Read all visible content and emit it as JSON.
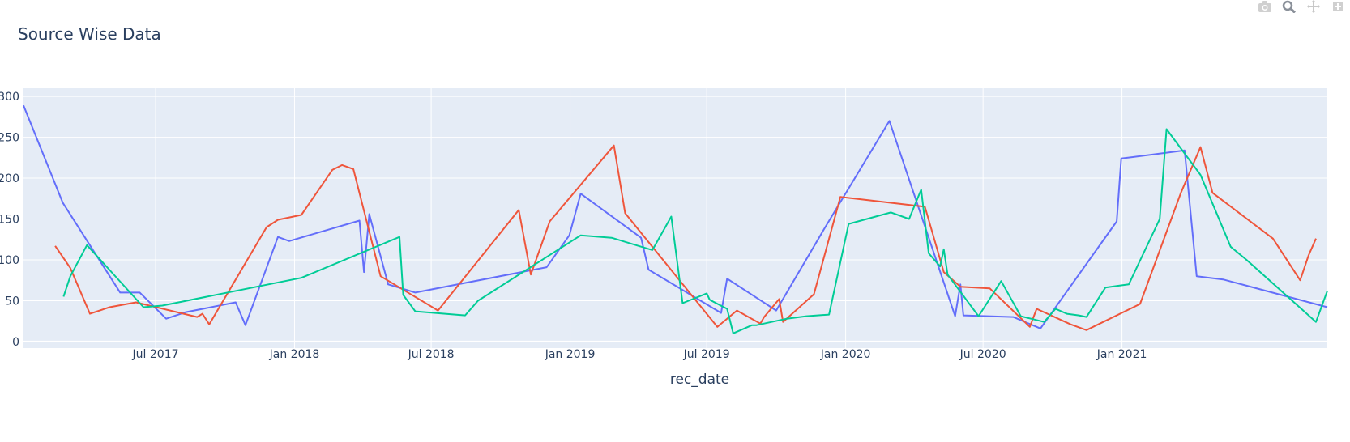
{
  "title": "Source Wise Data",
  "modebar": {
    "icons": [
      "camera-icon",
      "zoom-icon",
      "pan-icon",
      "more-icon"
    ]
  },
  "chart_data": {
    "type": "line",
    "title": "Source Wise Data",
    "xlabel": "rec_date",
    "ylabel": "",
    "x_range": [
      "2017-01-07",
      "2021-09-30"
    ],
    "ylim": [
      -8,
      310
    ],
    "x_ticks": [
      {
        "label": "Jul 2017",
        "date": "2017-07-01"
      },
      {
        "label": "Jan 2018",
        "date": "2018-01-01"
      },
      {
        "label": "Jul 2018",
        "date": "2018-07-01"
      },
      {
        "label": "Jan 2019",
        "date": "2019-01-01"
      },
      {
        "label": "Jul 2019",
        "date": "2019-07-01"
      },
      {
        "label": "Jan 2020",
        "date": "2020-01-01"
      },
      {
        "label": "Jul 2020",
        "date": "2020-07-01"
      },
      {
        "label": "Jan 2021",
        "date": "2021-01-01"
      }
    ],
    "y_ticks": [
      0,
      50,
      100,
      150,
      200,
      250,
      300
    ],
    "y_tick_labels": [
      "0",
      "50",
      "100",
      "150",
      "200",
      "250",
      "300"
    ],
    "grid": true,
    "legend": "none",
    "plot_bgcolor": "#e5ecf6",
    "series": [
      {
        "color": "#636efa",
        "points": [
          [
            "2017-01-07",
            289
          ],
          [
            "2017-02-28",
            170
          ],
          [
            "2017-05-15",
            60
          ],
          [
            "2017-06-10",
            60
          ],
          [
            "2017-07-15",
            28
          ],
          [
            "2017-08-10",
            36
          ],
          [
            "2017-10-15",
            48
          ],
          [
            "2017-10-28",
            20
          ],
          [
            "2017-12-10",
            128
          ],
          [
            "2017-12-25",
            123
          ],
          [
            "2018-03-28",
            148
          ],
          [
            "2018-04-03",
            85
          ],
          [
            "2018-04-10",
            156
          ],
          [
            "2018-05-05",
            70
          ],
          [
            "2018-06-10",
            60
          ],
          [
            "2018-12-01",
            91
          ],
          [
            "2018-12-31",
            130
          ],
          [
            "2019-01-15",
            181
          ],
          [
            "2019-04-05",
            127
          ],
          [
            "2019-04-15",
            88
          ],
          [
            "2019-07-20",
            35
          ],
          [
            "2019-07-28",
            77
          ],
          [
            "2019-10-01",
            38
          ],
          [
            "2019-12-05",
            140
          ],
          [
            "2020-02-28",
            270
          ],
          [
            "2020-05-25",
            31
          ],
          [
            "2020-06-01",
            70
          ],
          [
            "2020-06-05",
            32
          ],
          [
            "2020-08-10",
            30
          ],
          [
            "2020-09-15",
            16
          ],
          [
            "2020-12-25",
            147
          ],
          [
            "2020-12-31",
            224
          ],
          [
            "2021-03-25",
            234
          ],
          [
            "2021-04-10",
            80
          ],
          [
            "2021-05-15",
            76
          ],
          [
            "2021-09-30",
            42
          ]
        ]
      },
      {
        "color": "#ef553b",
        "points": [
          [
            "2017-02-18",
            117
          ],
          [
            "2017-03-10",
            90
          ],
          [
            "2017-04-05",
            34
          ],
          [
            "2017-05-01",
            42
          ],
          [
            "2017-06-05",
            48
          ],
          [
            "2017-08-25",
            30
          ],
          [
            "2017-09-01",
            34
          ],
          [
            "2017-09-10",
            21
          ],
          [
            "2017-11-25",
            140
          ],
          [
            "2017-12-10",
            149
          ],
          [
            "2018-01-10",
            155
          ],
          [
            "2018-02-20",
            210
          ],
          [
            "2018-03-05",
            216
          ],
          [
            "2018-03-20",
            211
          ],
          [
            "2018-04-25",
            80
          ],
          [
            "2018-07-10",
            38
          ],
          [
            "2018-10-25",
            161
          ],
          [
            "2018-11-10",
            82
          ],
          [
            "2018-12-05",
            147
          ],
          [
            "2019-02-28",
            240
          ],
          [
            "2019-03-15",
            157
          ],
          [
            "2019-07-15",
            18
          ],
          [
            "2019-08-10",
            38
          ],
          [
            "2019-09-10",
            22
          ],
          [
            "2019-09-15",
            30
          ],
          [
            "2019-10-05",
            52
          ],
          [
            "2019-10-10",
            24
          ],
          [
            "2019-11-20",
            58
          ],
          [
            "2019-12-25",
            177
          ],
          [
            "2020-04-15",
            165
          ],
          [
            "2020-05-10",
            85
          ],
          [
            "2020-06-01",
            67
          ],
          [
            "2020-07-10",
            65
          ],
          [
            "2020-09-01",
            18
          ],
          [
            "2020-09-10",
            40
          ],
          [
            "2020-10-25",
            21
          ],
          [
            "2020-11-15",
            14
          ],
          [
            "2021-01-25",
            46
          ],
          [
            "2021-03-20",
            182
          ],
          [
            "2021-04-15",
            238
          ],
          [
            "2021-05-01",
            182
          ],
          [
            "2021-07-20",
            126
          ],
          [
            "2021-08-25",
            75
          ],
          [
            "2021-09-05",
            105
          ],
          [
            "2021-09-15",
            126
          ]
        ]
      },
      {
        "color": "#00cc96",
        "points": [
          [
            "2017-03-01",
            55
          ],
          [
            "2017-03-10",
            80
          ],
          [
            "2017-04-01",
            118
          ],
          [
            "2017-06-15",
            42
          ],
          [
            "2017-07-10",
            44
          ],
          [
            "2018-01-10",
            78
          ],
          [
            "2018-05-20",
            128
          ],
          [
            "2018-05-25",
            57
          ],
          [
            "2018-06-10",
            37
          ],
          [
            "2018-08-15",
            32
          ],
          [
            "2018-09-01",
            50
          ],
          [
            "2019-01-15",
            130
          ],
          [
            "2019-02-25",
            127
          ],
          [
            "2019-04-20",
            112
          ],
          [
            "2019-05-15",
            153
          ],
          [
            "2019-05-30",
            47
          ],
          [
            "2019-07-01",
            59
          ],
          [
            "2019-07-05",
            51
          ],
          [
            "2019-07-28",
            40
          ],
          [
            "2019-08-05",
            10
          ],
          [
            "2019-08-30",
            20
          ],
          [
            "2019-09-05",
            20
          ],
          [
            "2019-10-15",
            28
          ],
          [
            "2019-11-10",
            31
          ],
          [
            "2019-12-10",
            33
          ],
          [
            "2020-01-05",
            144
          ],
          [
            "2020-03-01",
            158
          ],
          [
            "2020-03-25",
            150
          ],
          [
            "2020-04-10",
            186
          ],
          [
            "2020-04-20",
            108
          ],
          [
            "2020-05-05",
            92
          ],
          [
            "2020-05-10",
            113
          ],
          [
            "2020-05-15",
            82
          ],
          [
            "2020-06-25",
            31
          ],
          [
            "2020-07-25",
            74
          ],
          [
            "2020-08-20",
            31
          ],
          [
            "2020-09-20",
            24
          ],
          [
            "2020-10-05",
            40
          ],
          [
            "2020-10-20",
            34
          ],
          [
            "2020-11-05",
            32
          ],
          [
            "2020-11-15",
            30
          ],
          [
            "2020-12-10",
            66
          ],
          [
            "2020-12-25",
            68
          ],
          [
            "2021-01-10",
            70
          ],
          [
            "2021-02-20",
            150
          ],
          [
            "2021-03-01",
            260
          ],
          [
            "2021-04-15",
            204
          ],
          [
            "2021-05-25",
            116
          ],
          [
            "2021-06-15",
            100
          ],
          [
            "2021-09-15",
            24
          ],
          [
            "2021-09-30",
            62
          ]
        ]
      }
    ]
  }
}
